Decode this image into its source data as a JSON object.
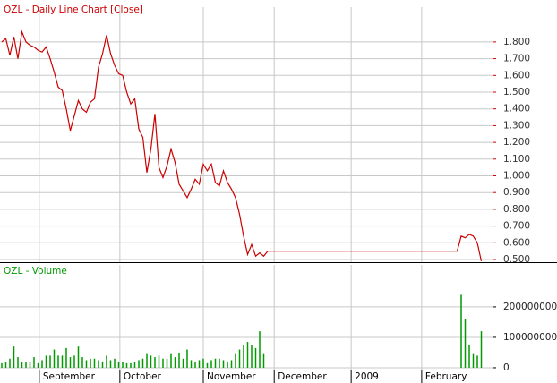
{
  "chart_data": [
    {
      "type": "line",
      "title": "OZL - Daily Line Chart [Close]",
      "color": "#cc0000",
      "grid": true,
      "ylim": [
        0.484,
        2.008
      ],
      "yticks": [
        {
          "value": 0.5,
          "label": "0.500"
        },
        {
          "value": 0.6,
          "label": "0.600"
        },
        {
          "value": 0.7,
          "label": "0.700"
        },
        {
          "value": 0.8,
          "label": "0.800"
        },
        {
          "value": 0.9,
          "label": "0.900"
        },
        {
          "value": 1.0,
          "label": "1.000"
        },
        {
          "value": 1.1,
          "label": "1.100"
        },
        {
          "value": 1.2,
          "label": "1.200"
        },
        {
          "value": 1.3,
          "label": "1.300"
        },
        {
          "value": 1.4,
          "label": "1.400"
        },
        {
          "value": 1.5,
          "label": "1.500"
        },
        {
          "value": 1.6,
          "label": "1.600"
        },
        {
          "value": 1.7,
          "label": "1.700"
        },
        {
          "value": 1.8,
          "label": "1.800"
        }
      ],
      "values": [
        1.8,
        1.82,
        1.72,
        1.83,
        1.7,
        1.86,
        1.8,
        1.78,
        1.77,
        1.75,
        1.74,
        1.77,
        1.7,
        1.62,
        1.53,
        1.51,
        1.4,
        1.27,
        1.36,
        1.45,
        1.4,
        1.38,
        1.44,
        1.46,
        1.65,
        1.73,
        1.84,
        1.73,
        1.66,
        1.61,
        1.6,
        1.5,
        1.43,
        1.46,
        1.28,
        1.23,
        1.02,
        1.16,
        1.37,
        1.05,
        0.99,
        1.06,
        1.16,
        1.08,
        0.95,
        0.91,
        0.87,
        0.92,
        0.98,
        0.95,
        1.07,
        1.03,
        1.07,
        0.96,
        0.94,
        1.03,
        0.96,
        0.92,
        0.87,
        0.77,
        0.64,
        0.53,
        0.59,
        0.52,
        0.54,
        0.52,
        0.55,
        0.55,
        0.55,
        0.55,
        0.55,
        0.55,
        0.55,
        0.55,
        0.55,
        0.55,
        0.55,
        0.55,
        0.55,
        0.55,
        0.55,
        0.55,
        0.55,
        0.55,
        0.55,
        0.55,
        0.55,
        0.55,
        0.55,
        0.55,
        0.55,
        0.55,
        0.55,
        0.55,
        0.55,
        0.55,
        0.55,
        0.55,
        0.55,
        0.55,
        0.55,
        0.55,
        0.55,
        0.55,
        0.55,
        0.55,
        0.55,
        0.55,
        0.55,
        0.55,
        0.55,
        0.55,
        0.55,
        0.55,
        0.64,
        0.63,
        0.65,
        0.64,
        0.6,
        0.49
      ]
    },
    {
      "type": "bar",
      "title": "OZL - Volume",
      "color": "#009900",
      "grid": true,
      "ylim": [
        -6000000,
        338000000
      ],
      "yticks": [
        0,
        100000000,
        200000000
      ],
      "xticks": [
        {
          "value": 9.3,
          "label": "September"
        },
        {
          "value": 29.3,
          "label": "October"
        },
        {
          "value": 50,
          "label": "November"
        },
        {
          "value": 67.6,
          "label": "December"
        },
        {
          "value": 86.7,
          "label": "2009"
        },
        {
          "value": 104.2,
          "label": "February"
        }
      ],
      "values": [
        15000000,
        20000000,
        30000000,
        70000000,
        35000000,
        20000000,
        20000000,
        20000000,
        35000000,
        15000000,
        25000000,
        40000000,
        40000000,
        60000000,
        40000000,
        40000000,
        65000000,
        35000000,
        40000000,
        70000000,
        35000000,
        25000000,
        30000000,
        30000000,
        25000000,
        20000000,
        40000000,
        25000000,
        30000000,
        20000000,
        20000000,
        15000000,
        15000000,
        20000000,
        25000000,
        30000000,
        45000000,
        40000000,
        35000000,
        40000000,
        30000000,
        30000000,
        45000000,
        35000000,
        50000000,
        30000000,
        60000000,
        25000000,
        20000000,
        25000000,
        30000000,
        15000000,
        25000000,
        30000000,
        30000000,
        25000000,
        20000000,
        25000000,
        45000000,
        60000000,
        75000000,
        85000000,
        75000000,
        65000000,
        120000000,
        45000000,
        0,
        0,
        0,
        0,
        0,
        0,
        0,
        0,
        0,
        0,
        0,
        0,
        0,
        0,
        0,
        0,
        0,
        0,
        0,
        0,
        0,
        0,
        0,
        0,
        0,
        0,
        0,
        0,
        0,
        0,
        0,
        0,
        0,
        0,
        0,
        0,
        0,
        0,
        0,
        0,
        0,
        0,
        0,
        0,
        0,
        0,
        0,
        0,
        240000000,
        160000000,
        75000000,
        45000000,
        40000000,
        120000000
      ]
    }
  ]
}
